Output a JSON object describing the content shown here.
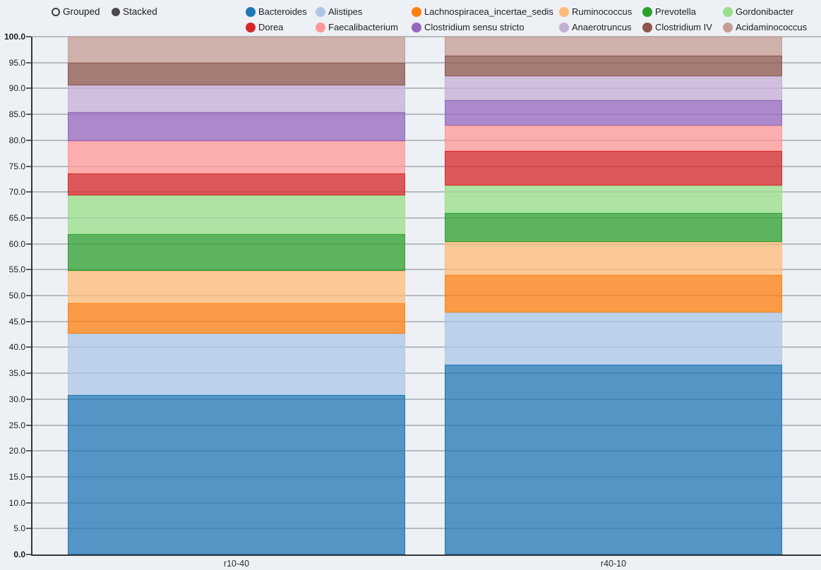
{
  "controls": {
    "grouped_label": "Grouped",
    "stacked_label": "Stacked",
    "selected": "Stacked"
  },
  "chart_data": {
    "type": "bar",
    "stacked": true,
    "title": "",
    "xlabel": "",
    "ylabel": "",
    "categories": [
      "r10-40",
      "r40-10"
    ],
    "series": [
      {
        "name": "Bacteroides",
        "color": "#1f77b4",
        "values": [
          30.8,
          36.7
        ]
      },
      {
        "name": "Alistipes",
        "color": "#aec7e8",
        "values": [
          11.8,
          10.0
        ]
      },
      {
        "name": "Lachnospiracea_incertae_sedis",
        "color": "#ff7f0e",
        "values": [
          5.9,
          7.2
        ]
      },
      {
        "name": "Ruminococcus",
        "color": "#ffbb78",
        "values": [
          6.3,
          6.5
        ]
      },
      {
        "name": "Prevotella",
        "color": "#2ca02c",
        "values": [
          7.1,
          5.6
        ]
      },
      {
        "name": "Gordonibacter",
        "color": "#98df8a",
        "values": [
          7.5,
          5.3
        ]
      },
      {
        "name": "Dorea",
        "color": "#d62728",
        "values": [
          4.2,
          6.6
        ]
      },
      {
        "name": "Faecalibacterium",
        "color": "#ff9896",
        "values": [
          6.3,
          4.9
        ]
      },
      {
        "name": "Clostridium sensu stricto",
        "color": "#9467bd",
        "values": [
          5.5,
          5.0
        ]
      },
      {
        "name": "Anaerotruncus",
        "color": "#c5b0d5",
        "values": [
          5.2,
          4.6
        ]
      },
      {
        "name": "Clostridium IV",
        "color": "#8c564b",
        "values": [
          4.4,
          4.0
        ]
      },
      {
        "name": "Acidaminococcus",
        "color": "#c49c94",
        "values": [
          5.0,
          3.6
        ]
      }
    ],
    "ylim": [
      0,
      100
    ],
    "ytick_labels": [
      "0.0",
      "5.0",
      "10.0",
      "15.0",
      "20.0",
      "25.0",
      "30.0",
      "35.0",
      "40.0",
      "45.0",
      "50.0",
      "55.0",
      "60.0",
      "65.0",
      "70.0",
      "75.0",
      "80.0",
      "85.0",
      "90.0",
      "95.0",
      "100.0"
    ],
    "grid": true,
    "legend_position": "top",
    "background_color": "#edf0f4",
    "bar_fill_opacity": 0.75
  }
}
